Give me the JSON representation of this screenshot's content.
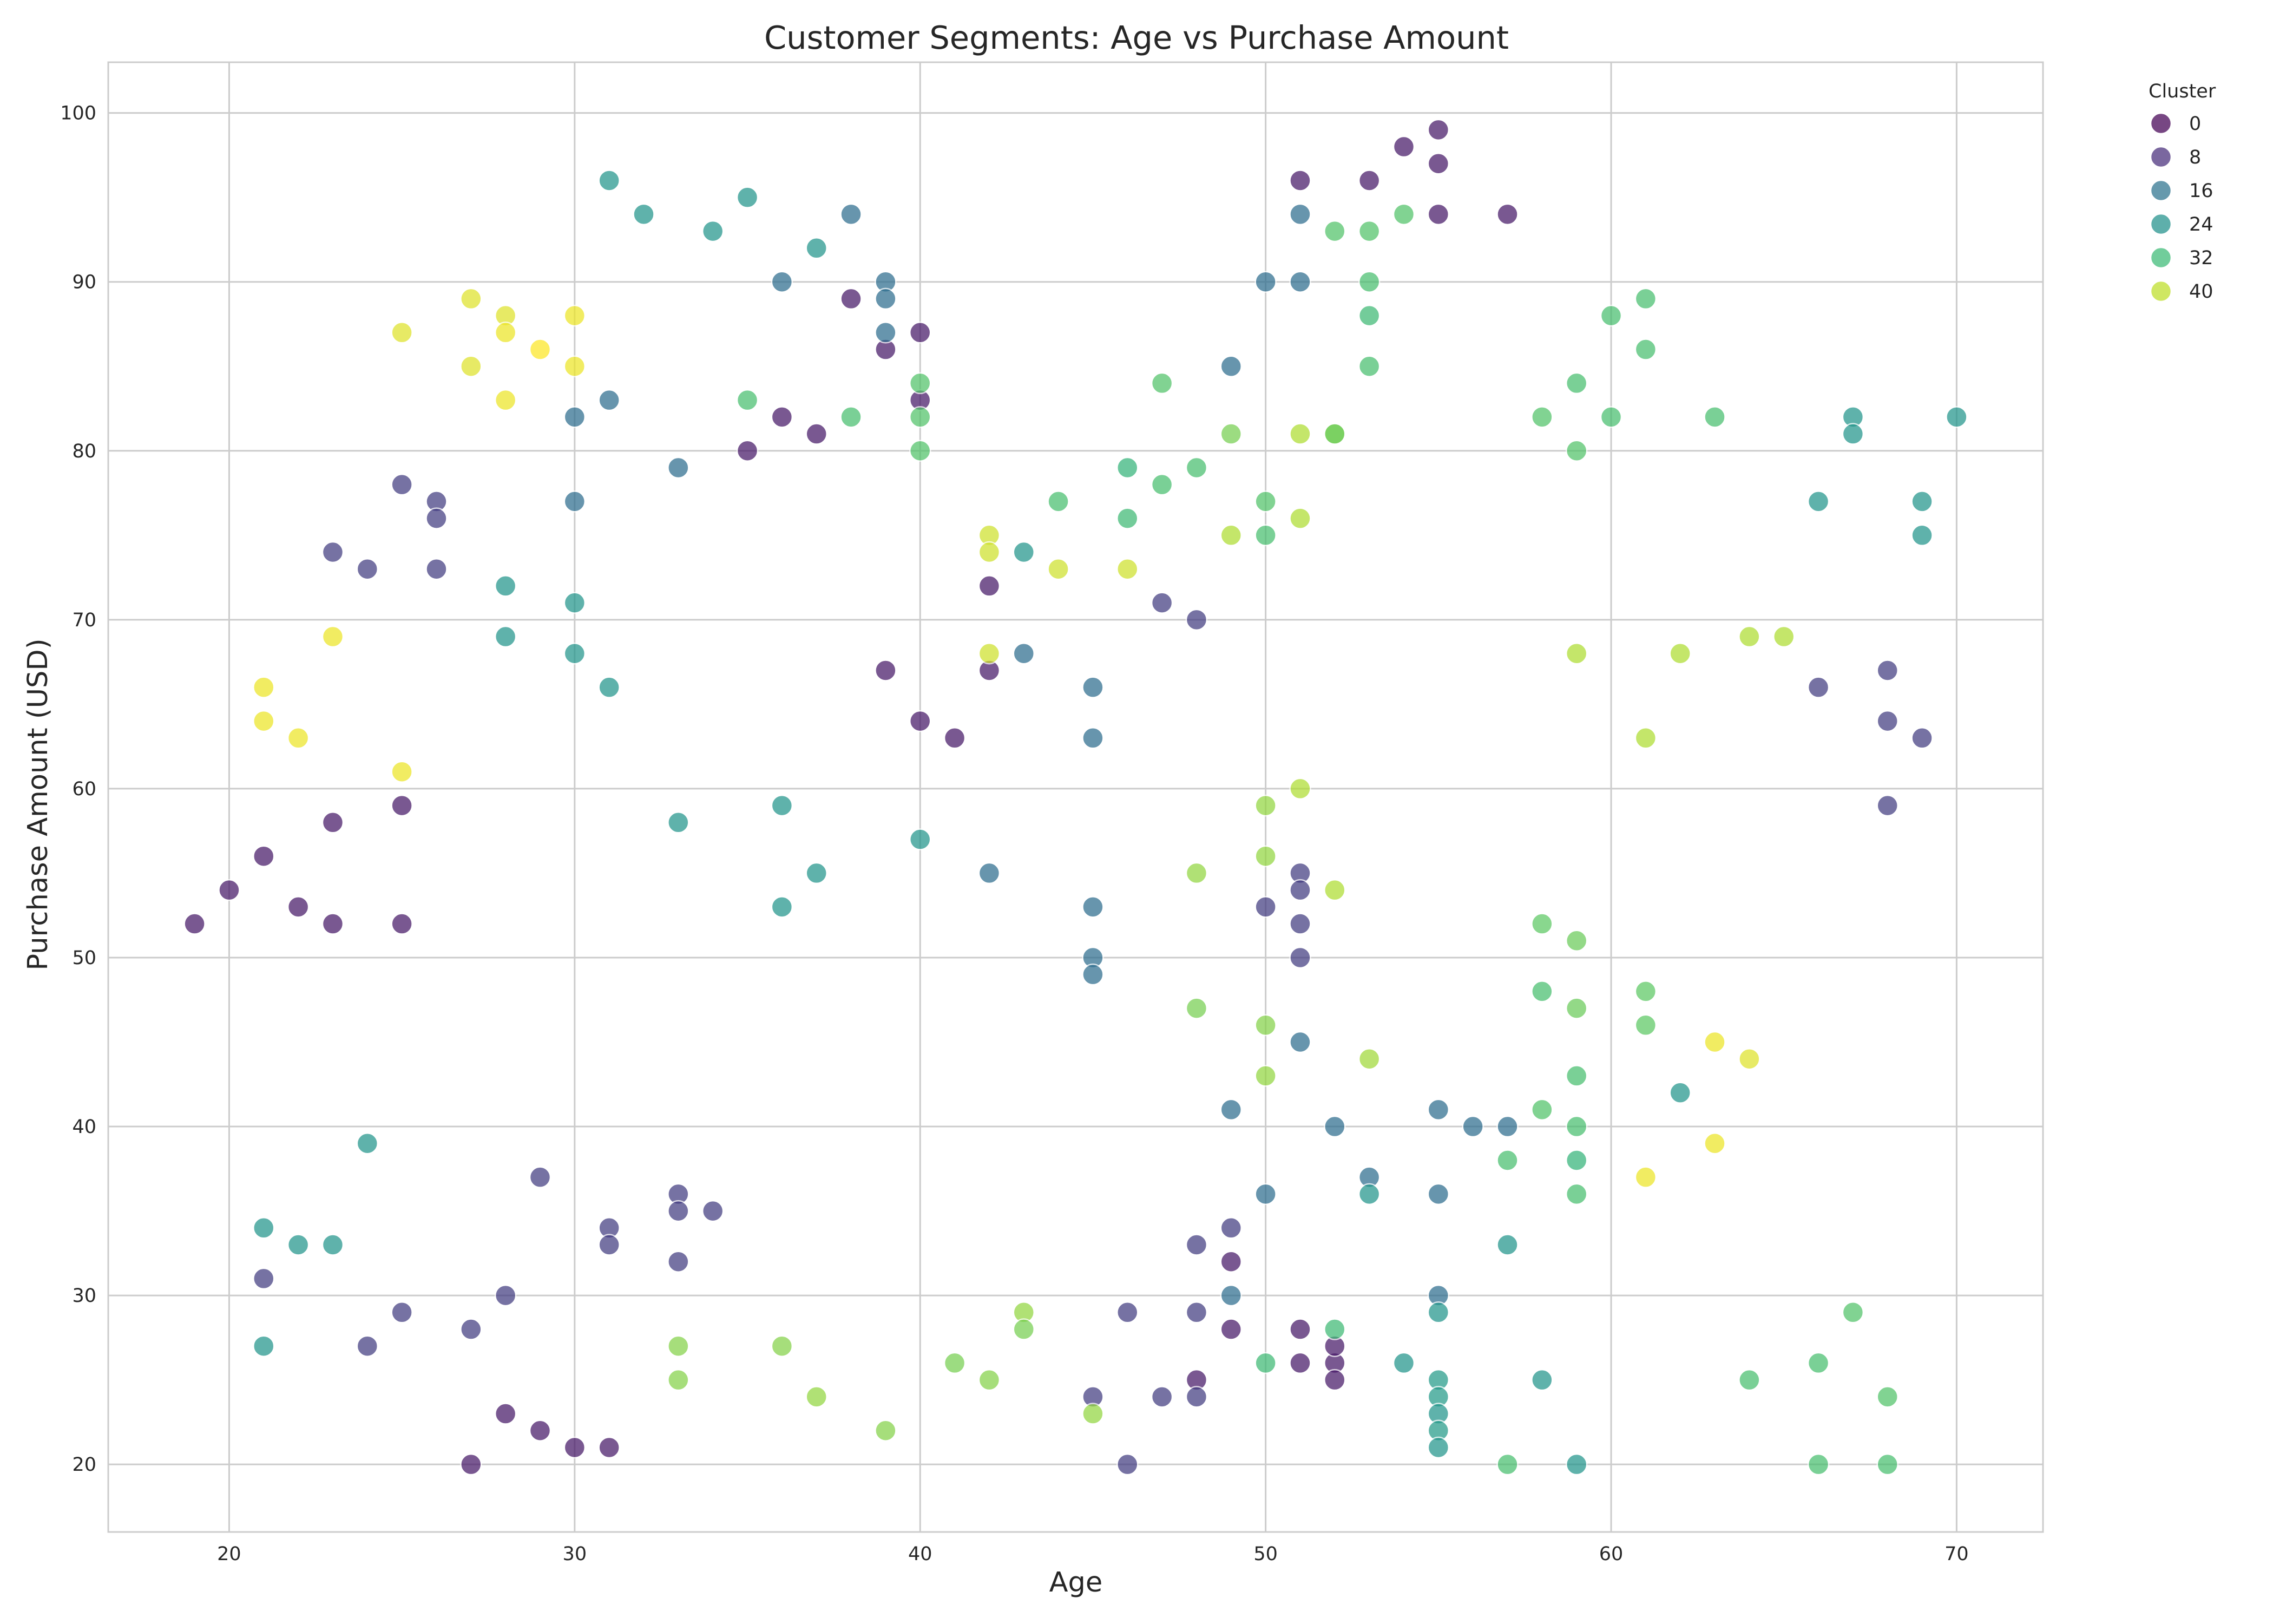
{
  "chart_data": {
    "type": "scatter",
    "title": "Customer Segments: Age vs Purchase Amount",
    "xlabel": "Age",
    "ylabel": "Purchase Amount (USD)",
    "xlim": [
      16.5,
      72.5
    ],
    "ylim": [
      16,
      103
    ],
    "xticks": [
      20,
      30,
      40,
      50,
      60,
      70
    ],
    "yticks": [
      20,
      30,
      40,
      50,
      60,
      70,
      80,
      90,
      100
    ],
    "grid": true,
    "colormap": "viridis",
    "color_range": [
      0,
      44
    ],
    "legend": {
      "title": "Cluster",
      "placement": "outside-top-right",
      "entries": [
        {
          "label": "0",
          "value": 0,
          "color": "#440154"
        },
        {
          "label": "8",
          "value": 8,
          "color": "#472d7b"
        },
        {
          "label": "16",
          "value": 16,
          "color": "#2c728e"
        },
        {
          "label": "24",
          "value": 24,
          "color": "#21918c"
        },
        {
          "label": "32",
          "value": 32,
          "color": "#3bbb75"
        },
        {
          "label": "40",
          "value": 40,
          "color": "#bddf26"
        }
      ]
    },
    "points": [
      [
        19,
        52,
        3
      ],
      [
        20,
        54,
        3
      ],
      [
        21,
        56,
        3
      ],
      [
        22,
        53,
        3
      ],
      [
        23,
        52,
        3
      ],
      [
        23,
        58,
        3
      ],
      [
        25,
        52,
        3
      ],
      [
        25,
        59,
        3
      ],
      [
        27,
        20,
        3
      ],
      [
        28,
        23,
        3
      ],
      [
        29,
        22,
        3
      ],
      [
        30,
        21,
        3
      ],
      [
        31,
        21,
        3
      ],
      [
        35,
        80,
        3
      ],
      [
        36,
        82,
        3
      ],
      [
        37,
        81,
        3
      ],
      [
        38,
        89,
        3
      ],
      [
        39,
        86,
        3
      ],
      [
        40,
        87,
        3
      ],
      [
        40,
        83,
        3
      ],
      [
        39,
        67,
        3
      ],
      [
        40,
        64,
        3
      ],
      [
        41,
        63,
        3
      ],
      [
        42,
        72,
        3
      ],
      [
        42,
        67,
        3
      ],
      [
        49,
        32,
        3
      ],
      [
        48,
        25,
        3
      ],
      [
        49,
        28,
        3
      ],
      [
        51,
        28,
        3
      ],
      [
        51,
        26,
        3
      ],
      [
        52,
        26,
        3
      ],
      [
        52,
        27,
        3
      ],
      [
        52,
        25,
        3
      ],
      [
        51,
        96,
        3
      ],
      [
        53,
        96,
        3
      ],
      [
        54,
        98,
        3
      ],
      [
        55,
        99,
        3
      ],
      [
        55,
        97,
        3
      ],
      [
        55,
        94,
        3
      ],
      [
        57,
        94,
        3
      ],
      [
        21,
        31,
        8
      ],
      [
        24,
        27,
        8
      ],
      [
        25,
        29,
        8
      ],
      [
        27,
        28,
        8
      ],
      [
        28,
        30,
        8
      ],
      [
        29,
        37,
        8
      ],
      [
        31,
        34,
        8
      ],
      [
        31,
        33,
        8
      ],
      [
        33,
        36,
        8
      ],
      [
        33,
        35,
        8
      ],
      [
        33,
        32,
        8
      ],
      [
        34,
        35,
        8
      ],
      [
        23,
        74,
        8
      ],
      [
        24,
        73,
        8
      ],
      [
        25,
        78,
        8
      ],
      [
        26,
        77,
        8
      ],
      [
        26,
        76,
        8
      ],
      [
        26,
        73,
        8
      ],
      [
        45,
        24,
        8
      ],
      [
        46,
        20,
        8
      ],
      [
        46,
        29,
        8
      ],
      [
        47,
        24,
        8
      ],
      [
        48,
        24,
        8
      ],
      [
        48,
        29,
        8
      ],
      [
        48,
        33,
        8
      ],
      [
        49,
        34,
        8
      ],
      [
        50,
        53,
        8
      ],
      [
        51,
        55,
        8
      ],
      [
        51,
        54,
        8
      ],
      [
        51,
        52,
        8
      ],
      [
        51,
        50,
        8
      ],
      [
        47,
        71,
        8
      ],
      [
        48,
        70,
        8
      ],
      [
        66,
        66,
        8
      ],
      [
        68,
        67,
        8
      ],
      [
        68,
        64,
        8
      ],
      [
        68,
        59,
        8
      ],
      [
        69,
        63,
        8
      ],
      [
        30,
        82,
        16
      ],
      [
        30,
        77,
        16
      ],
      [
        31,
        83,
        16
      ],
      [
        33,
        79,
        16
      ],
      [
        36,
        90,
        16
      ],
      [
        38,
        94,
        16
      ],
      [
        39,
        90,
        16
      ],
      [
        39,
        89,
        16
      ],
      [
        39,
        87,
        16
      ],
      [
        43,
        68,
        16
      ],
      [
        45,
        66,
        16
      ],
      [
        45,
        63,
        16
      ],
      [
        42,
        55,
        16
      ],
      [
        45,
        53,
        16
      ],
      [
        45,
        50,
        16
      ],
      [
        45,
        49,
        16
      ],
      [
        49,
        85,
        16
      ],
      [
        50,
        90,
        16
      ],
      [
        51,
        94,
        16
      ],
      [
        51,
        90,
        16
      ],
      [
        49,
        41,
        16
      ],
      [
        49,
        30,
        16
      ],
      [
        50,
        36,
        16
      ],
      [
        51,
        45,
        16
      ],
      [
        52,
        40,
        16
      ],
      [
        53,
        37,
        16
      ],
      [
        55,
        41,
        16
      ],
      [
        55,
        36,
        16
      ],
      [
        55,
        30,
        16
      ],
      [
        56,
        40,
        16
      ],
      [
        57,
        40,
        16
      ],
      [
        21,
        34,
        23
      ],
      [
        21,
        27,
        23
      ],
      [
        22,
        33,
        23
      ],
      [
        23,
        33,
        23
      ],
      [
        24,
        39,
        23
      ],
      [
        28,
        72,
        23
      ],
      [
        28,
        69,
        23
      ],
      [
        30,
        71,
        23
      ],
      [
        30,
        68,
        23
      ],
      [
        31,
        66,
        23
      ],
      [
        31,
        96,
        23
      ],
      [
        32,
        94,
        23
      ],
      [
        34,
        93,
        23
      ],
      [
        35,
        95,
        23
      ],
      [
        37,
        92,
        23
      ],
      [
        33,
        58,
        23
      ],
      [
        36,
        59,
        23
      ],
      [
        36,
        53,
        23
      ],
      [
        37,
        55,
        23
      ],
      [
        40,
        57,
        23
      ],
      [
        43,
        74,
        23
      ],
      [
        53,
        36,
        23
      ],
      [
        54,
        26,
        23
      ],
      [
        55,
        29,
        23
      ],
      [
        55,
        25,
        24
      ],
      [
        55,
        24,
        24
      ],
      [
        55,
        23,
        23
      ],
      [
        55,
        22,
        24
      ],
      [
        55,
        21,
        23
      ],
      [
        57,
        33,
        23
      ],
      [
        58,
        25,
        23
      ],
      [
        59,
        20,
        23
      ],
      [
        62,
        42,
        23
      ],
      [
        66,
        77,
        23
      ],
      [
        67,
        82,
        23
      ],
      [
        67,
        81,
        23
      ],
      [
        69,
        77,
        23
      ],
      [
        69,
        75,
        23
      ],
      [
        70,
        82,
        23
      ],
      [
        35,
        83,
        31
      ],
      [
        38,
        82,
        31
      ],
      [
        40,
        84,
        32
      ],
      [
        40,
        82,
        32
      ],
      [
        40,
        80,
        32
      ],
      [
        44,
        77,
        31
      ],
      [
        46,
        79,
        29
      ],
      [
        46,
        76,
        30
      ],
      [
        47,
        84,
        32
      ],
      [
        47,
        78,
        31
      ],
      [
        48,
        79,
        31
      ],
      [
        50,
        77,
        32
      ],
      [
        50,
        75,
        31
      ],
      [
        52,
        93,
        32
      ],
      [
        53,
        93,
        32
      ],
      [
        53,
        90,
        31
      ],
      [
        53,
        88,
        30
      ],
      [
        53,
        85,
        31
      ],
      [
        52,
        81,
        33
      ],
      [
        54,
        94,
        32
      ],
      [
        58,
        82,
        32
      ],
      [
        59,
        84,
        31
      ],
      [
        59,
        80,
        32
      ],
      [
        60,
        88,
        31
      ],
      [
        60,
        82,
        31
      ],
      [
        61,
        89,
        31
      ],
      [
        61,
        86,
        31
      ],
      [
        63,
        82,
        31
      ],
      [
        50,
        26,
        30
      ],
      [
        52,
        28,
        30
      ],
      [
        57,
        38,
        31
      ],
      [
        57,
        20,
        31
      ],
      [
        58,
        48,
        31
      ],
      [
        58,
        41,
        32
      ],
      [
        58,
        52,
        33
      ],
      [
        59,
        51,
        34
      ],
      [
        59,
        47,
        34
      ],
      [
        59,
        43,
        31
      ],
      [
        59,
        40,
        31
      ],
      [
        59,
        38,
        29
      ],
      [
        59,
        36,
        31
      ],
      [
        61,
        48,
        33
      ],
      [
        61,
        46,
        33
      ],
      [
        64,
        25,
        31
      ],
      [
        66,
        26,
        31
      ],
      [
        66,
        20,
        31
      ],
      [
        67,
        29,
        32
      ],
      [
        68,
        24,
        32
      ],
      [
        68,
        20,
        31
      ],
      [
        33,
        27,
        36
      ],
      [
        33,
        25,
        36
      ],
      [
        36,
        27,
        36
      ],
      [
        37,
        24,
        37
      ],
      [
        39,
        22,
        36
      ],
      [
        41,
        26,
        35
      ],
      [
        42,
        25,
        36
      ],
      [
        43,
        29,
        37
      ],
      [
        43,
        28,
        35
      ],
      [
        45,
        23,
        37
      ],
      [
        48,
        55,
        37
      ],
      [
        48,
        47,
        35
      ],
      [
        50,
        59,
        37
      ],
      [
        50,
        56,
        37
      ],
      [
        50,
        46,
        36
      ],
      [
        50,
        43,
        37
      ],
      [
        49,
        81,
        35
      ],
      [
        51,
        81,
        39
      ],
      [
        52,
        81,
        35
      ],
      [
        52,
        54,
        39
      ],
      [
        51,
        60,
        39
      ],
      [
        49,
        75,
        39
      ],
      [
        51,
        76,
        39
      ],
      [
        53,
        44,
        38
      ],
      [
        59,
        68,
        39
      ],
      [
        61,
        63,
        39
      ],
      [
        62,
        68,
        39
      ],
      [
        64,
        69,
        39
      ],
      [
        65,
        69,
        39
      ],
      [
        42,
        75,
        41
      ],
      [
        42,
        74,
        41
      ],
      [
        44,
        73,
        41
      ],
      [
        46,
        73,
        41
      ],
      [
        42,
        68,
        41
      ],
      [
        21,
        66,
        43
      ],
      [
        21,
        64,
        43
      ],
      [
        22,
        63,
        43
      ],
      [
        23,
        69,
        43
      ],
      [
        25,
        61,
        43
      ],
      [
        25,
        87,
        42
      ],
      [
        27,
        89,
        42
      ],
      [
        27,
        85,
        42
      ],
      [
        28,
        88,
        42
      ],
      [
        28,
        87,
        43
      ],
      [
        28,
        83,
        43
      ],
      [
        29,
        86,
        44
      ],
      [
        30,
        88,
        43
      ],
      [
        30,
        85,
        43
      ],
      [
        61,
        37,
        43
      ],
      [
        63,
        45,
        43
      ],
      [
        63,
        39,
        43
      ],
      [
        64,
        44,
        42
      ]
    ]
  }
}
